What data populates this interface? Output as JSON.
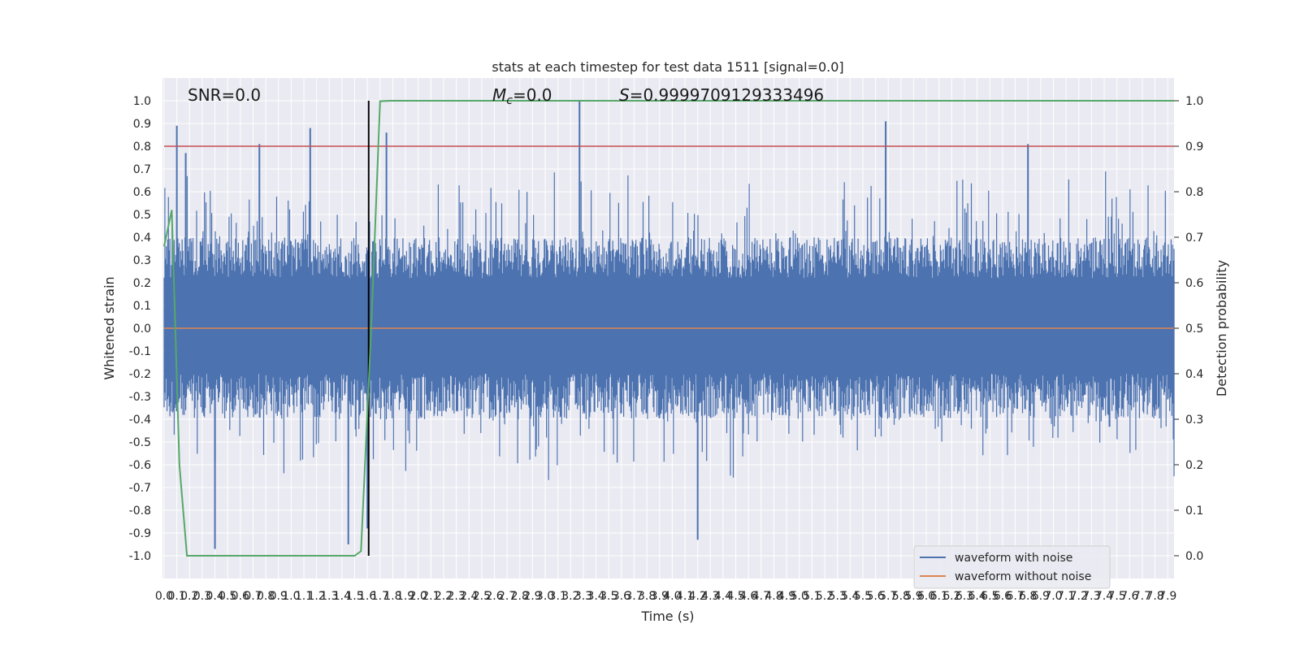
{
  "chart_data": {
    "type": "line",
    "title": "stats at each timestep for test data 1511 [signal=0.0]",
    "xlabel": "Time (s)",
    "ylabel": "Whitened strain",
    "ylabel_right": "Detection probability",
    "xlim": [
      0.0,
      7.95
    ],
    "ylim": [
      -1.1,
      1.1
    ],
    "ylim_right": [
      -0.05,
      1.05
    ],
    "x_ticks": [
      0.0,
      0.1,
      0.2,
      0.3,
      0.4,
      0.5,
      0.6,
      0.7,
      0.8,
      0.9,
      1.0,
      1.1,
      1.2,
      1.3,
      1.4,
      1.5,
      1.6,
      1.7,
      1.8,
      1.9,
      2.0,
      2.1,
      2.2,
      2.3,
      2.4,
      2.5,
      2.6,
      2.7,
      2.8,
      2.9,
      3.0,
      3.1,
      3.2,
      3.3,
      3.4,
      3.5,
      3.6,
      3.7,
      3.8,
      3.9,
      4.0,
      4.1,
      4.2,
      4.3,
      4.4,
      4.5,
      4.6,
      4.7,
      4.8,
      4.9,
      5.0,
      5.1,
      5.2,
      5.3,
      5.4,
      5.5,
      5.6,
      5.7,
      5.8,
      5.9,
      6.0,
      6.1,
      6.2,
      6.3,
      6.4,
      6.5,
      6.6,
      6.7,
      6.8,
      6.9,
      7.0,
      7.1,
      7.2,
      7.3,
      7.4,
      7.5,
      7.6,
      7.7,
      7.8,
      7.9
    ],
    "y_ticks": [
      -1.0,
      -0.9,
      -0.8,
      -0.7,
      -0.6,
      -0.5,
      -0.4,
      -0.3,
      -0.2,
      -0.1,
      0.0,
      0.1,
      0.2,
      0.3,
      0.4,
      0.5,
      0.6,
      0.7,
      0.8,
      0.9,
      1.0
    ],
    "y_ticks_right": [
      0.0,
      0.1,
      0.2,
      0.3,
      0.4,
      0.5,
      0.6,
      0.7,
      0.8,
      0.9,
      1.0
    ],
    "grid": true,
    "legend_position": "lower-right",
    "colors": {
      "background": "#eaeaf2",
      "grid": "#ffffff",
      "with_noise": "#4c72b0",
      "without_noise": "#dd8452",
      "probability": "#55a868",
      "threshold": "#c44e52",
      "trigger": "#000000"
    },
    "annotations": {
      "snr": "SNR=0.0",
      "mc_symbol": "M",
      "mc_subscript": "c",
      "mc_value": "=0.0",
      "s_symbol": "S",
      "s_value": "=0.9999709129333496"
    },
    "series": [
      {
        "name": "waveform with noise",
        "kind": "noise",
        "envelope_upper": [
          [
            0.0,
            0.45
          ],
          [
            0.5,
            0.45
          ],
          [
            1.0,
            0.45
          ],
          [
            1.5,
            0.45
          ],
          [
            2.0,
            0.45
          ],
          [
            3.0,
            0.45
          ],
          [
            4.0,
            0.45
          ],
          [
            5.0,
            0.45
          ],
          [
            6.0,
            0.45
          ],
          [
            7.0,
            0.45
          ],
          [
            7.95,
            0.45
          ]
        ],
        "envelope_lower": [
          [
            0.0,
            -0.45
          ],
          [
            7.95,
            -0.45
          ]
        ],
        "peaks": [
          [
            0.1,
            0.89
          ],
          [
            0.17,
            0.77
          ],
          [
            0.4,
            -0.97
          ],
          [
            0.75,
            0.81
          ],
          [
            1.15,
            0.88
          ],
          [
            1.45,
            -0.95
          ],
          [
            1.6,
            -0.88
          ],
          [
            1.75,
            0.86
          ],
          [
            3.27,
            1.0
          ],
          [
            4.2,
            -0.93
          ],
          [
            5.68,
            0.91
          ],
          [
            6.8,
            0.81
          ]
        ]
      },
      {
        "name": "waveform without noise",
        "kind": "flat",
        "values": [
          [
            0.0,
            0.0
          ],
          [
            7.95,
            0.0
          ]
        ]
      },
      {
        "name": "detection probability",
        "kind": "line",
        "axis": "right",
        "values": [
          [
            0.0,
            0.68
          ],
          [
            0.06,
            0.76
          ],
          [
            0.12,
            0.2
          ],
          [
            0.18,
            0.0
          ],
          [
            0.25,
            -0.0
          ],
          [
            1.5,
            0.0
          ],
          [
            1.55,
            0.01
          ],
          [
            1.63,
            0.5
          ],
          [
            1.7,
            0.999
          ],
          [
            1.78,
            1.0
          ],
          [
            7.95,
            1.0
          ]
        ]
      }
    ],
    "threshold": {
      "y": 0.8
    },
    "trigger_time": 1.61
  },
  "legend": {
    "with_noise_label": "waveform with noise",
    "without_noise_label": "waveform without noise"
  }
}
